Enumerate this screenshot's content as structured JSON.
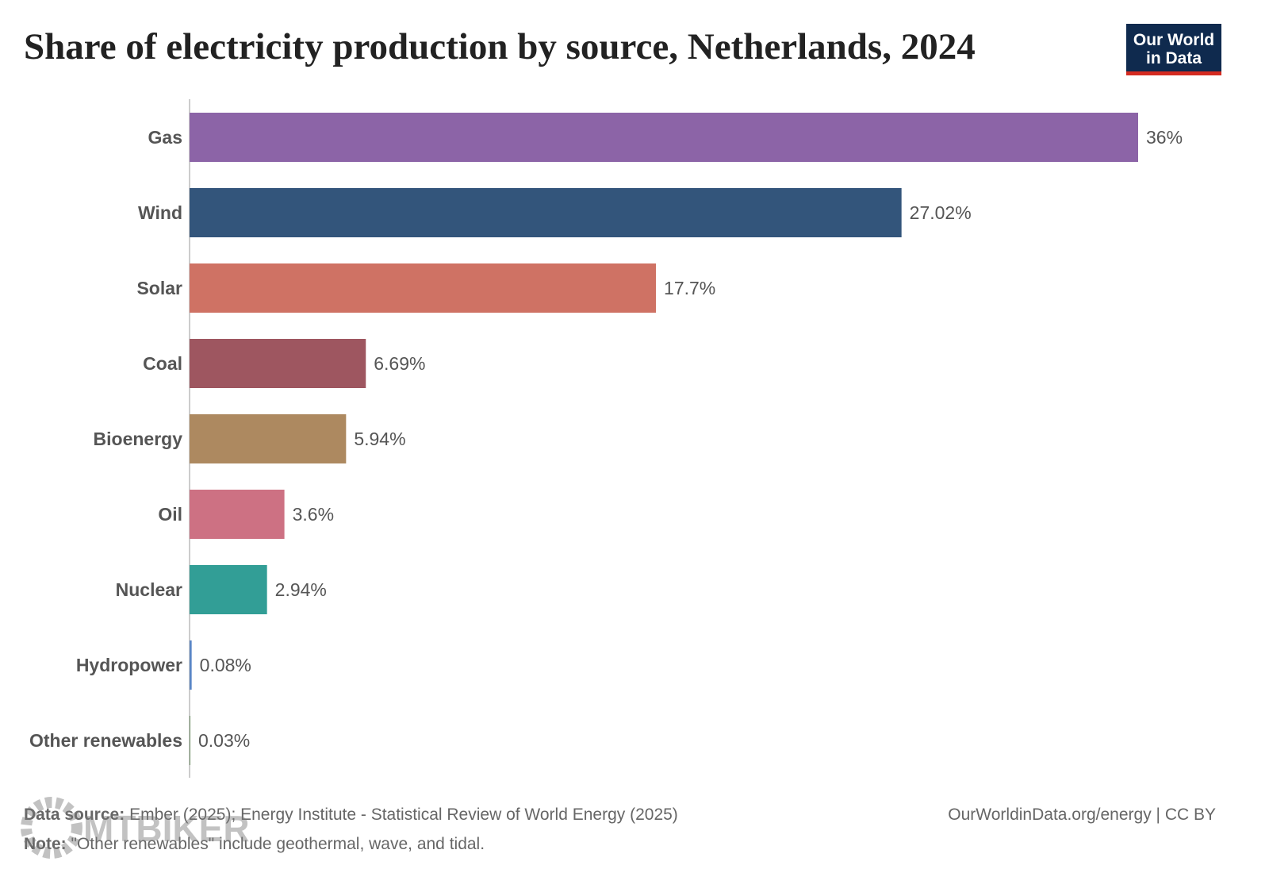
{
  "chart_data": {
    "type": "bar",
    "orientation": "horizontal",
    "title": "Share of electricity production by source, Netherlands, 2024",
    "categories": [
      "Gas",
      "Wind",
      "Solar",
      "Coal",
      "Bioenergy",
      "Oil",
      "Nuclear",
      "Hydropower",
      "Other renewables"
    ],
    "values": [
      36,
      27.02,
      17.7,
      6.69,
      5.94,
      3.6,
      2.94,
      0.08,
      0.03
    ],
    "value_labels": [
      "36%",
      "27.02%",
      "17.7%",
      "6.69%",
      "5.94%",
      "3.6%",
      "2.94%",
      "0.08%",
      "0.03%"
    ],
    "colors": [
      "#8c64a7",
      "#33557b",
      "#cf7264",
      "#9e5660",
      "#ad8960",
      "#cd7183",
      "#329e96",
      "#5a86c6",
      "#6a8a60"
    ],
    "source_label": "Data source:",
    "source": "Ember (2025); Energy Institute - Statistical Review of World Energy (2025)",
    "note_label": "Note:",
    "note": "\"Other renewables\" include geothermal, wave, and tidal.",
    "credit": "OurWorldinData.org/energy | CC BY",
    "logo": [
      "Our World",
      "in Data"
    ],
    "watermark": "MTBIKER"
  }
}
